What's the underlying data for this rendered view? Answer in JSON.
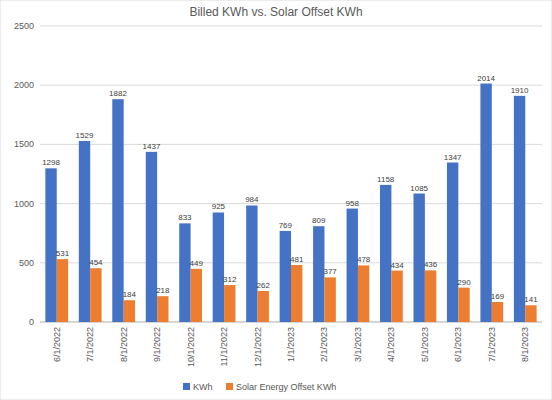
{
  "chart_data": {
    "type": "bar",
    "title": "Billed KWh vs. Solar Offset KWh",
    "categories": [
      "6/1/2022",
      "7/1/2022",
      "8/1/2022",
      "9/1/2022",
      "10/1/2022",
      "11/1/2022",
      "12/1/2022",
      "1/1/2023",
      "2/1/2023",
      "3/1/2023",
      "4/1/2023",
      "5/1/2023",
      "6/1/2023",
      "7/1/2023",
      "8/1/2023"
    ],
    "series": [
      {
        "name": "KWh",
        "color": "#4472c4",
        "values": [
          1298,
          1529,
          1882,
          1437,
          833,
          925,
          984,
          769,
          809,
          958,
          1158,
          1085,
          1347,
          2014,
          1910
        ]
      },
      {
        "name": "Solar Energy Offset KWh",
        "color": "#ed7d31",
        "values": [
          531,
          454,
          184,
          218,
          449,
          312,
          262,
          481,
          377,
          478,
          434,
          436,
          290,
          169,
          141
        ]
      }
    ],
    "ylim": [
      0,
      2500
    ],
    "yticks": [
      0,
      500,
      1000,
      1500,
      2000,
      2500
    ],
    "grid": true,
    "data_labels": true,
    "legend": "bottom"
  }
}
